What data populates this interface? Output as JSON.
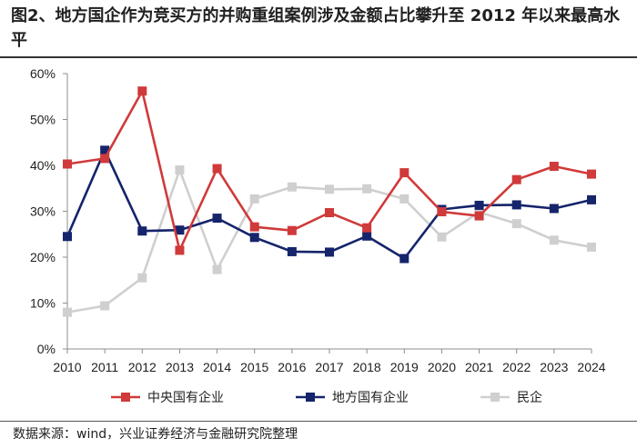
{
  "title": "图2、地方国企作为竞买方的并购重组案例涉及金额占比攀升至 2012 年以来最高水平",
  "source": "数据来源：wind，兴业证券经济与金融研究院整理",
  "chart_data": {
    "type": "line",
    "title": "图2、地方国企作为竞买方的并购重组案例涉及金额占比攀升至 2012 年以来最高水平",
    "xlabel": "",
    "ylabel": "",
    "categories": [
      "2010",
      "2011",
      "2012",
      "2013",
      "2014",
      "2015",
      "2016",
      "2017",
      "2018",
      "2019",
      "2020",
      "2021",
      "2022",
      "2023",
      "2024"
    ],
    "ylim": [
      0,
      60
    ],
    "yticks": [
      0,
      10,
      20,
      30,
      40,
      50,
      60
    ],
    "ytick_labels": [
      "0%",
      "10%",
      "20%",
      "30%",
      "40%",
      "50%",
      "60%"
    ],
    "grid": false,
    "legend_position": "bottom",
    "series": [
      {
        "name": "中央国有企业",
        "color": "#d03a3a",
        "values": [
          40.3,
          41.5,
          56.2,
          21.5,
          39.3,
          26.6,
          25.8,
          29.7,
          26.4,
          38.4,
          29.9,
          29.0,
          36.9,
          39.8,
          38.1
        ]
      },
      {
        "name": "地方国有企业",
        "color": "#15246b",
        "values": [
          24.5,
          43.3,
          25.7,
          25.9,
          28.5,
          24.3,
          21.2,
          21.1,
          24.6,
          19.7,
          30.4,
          31.3,
          31.4,
          30.6,
          32.5
        ]
      },
      {
        "name": "民企",
        "color": "#cfcfcf",
        "values": [
          8.0,
          9.4,
          15.5,
          39.0,
          17.3,
          32.7,
          35.3,
          34.8,
          34.9,
          32.7,
          24.4,
          29.8,
          27.3,
          23.7,
          22.2
        ]
      }
    ]
  }
}
